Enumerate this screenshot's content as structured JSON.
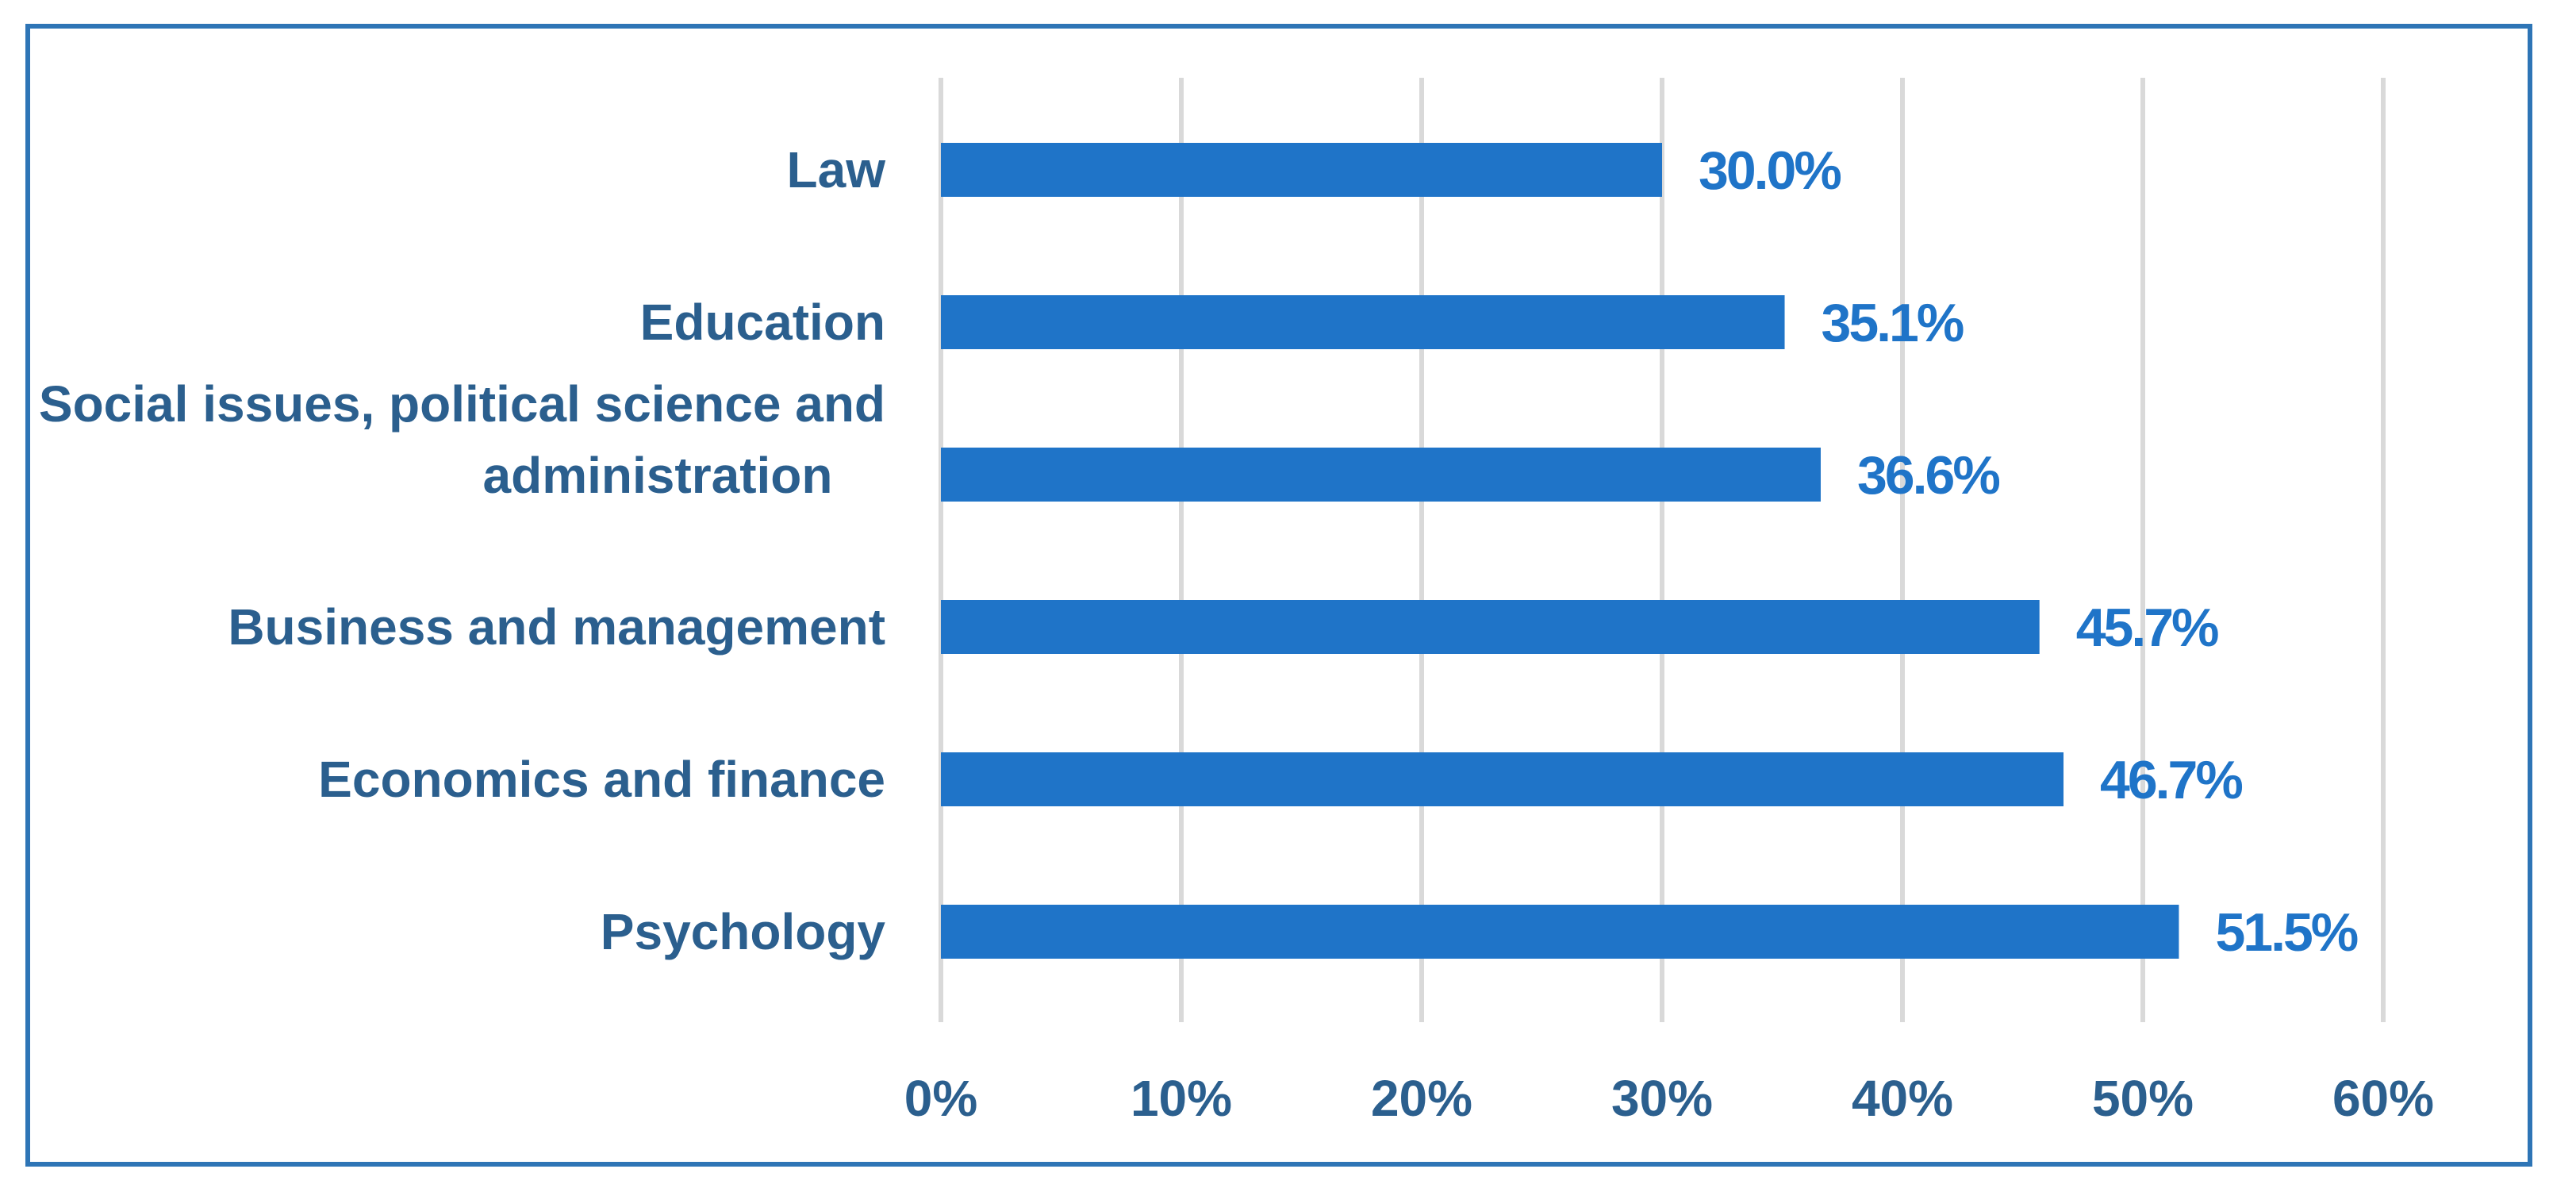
{
  "chart_data": {
    "type": "bar",
    "orientation": "horizontal",
    "categories": [
      "Law",
      "Education",
      "Social issues, political science and administration",
      "Business and management",
      "Economics and finance",
      "Psychology"
    ],
    "category_lines": [
      [
        "Law"
      ],
      [
        "Education"
      ],
      [
        "Social issues, political science and",
        "administration"
      ],
      [
        "Business and management"
      ],
      [
        "Economics and finance"
      ],
      [
        "Psychology"
      ]
    ],
    "values": [
      30.0,
      35.1,
      36.6,
      45.7,
      46.7,
      51.5
    ],
    "data_labels": [
      "30.0%",
      "35.1%",
      "36.6%",
      "45.7%",
      "46.7%",
      "51.5%"
    ],
    "x_ticks": [
      0,
      10,
      20,
      30,
      40,
      50,
      60
    ],
    "x_tick_labels": [
      "0%",
      "10%",
      "20%",
      "30%",
      "40%",
      "50%",
      "60%"
    ],
    "xlim": [
      0,
      60
    ],
    "title": "",
    "xlabel": "",
    "ylabel": "",
    "grid": true,
    "legend": "none",
    "colors": {
      "bar": "#1f74c8",
      "data_label": "#1f74c8",
      "axis_text": "#2b5f8e",
      "gridline": "#d9d9d9",
      "frame": "#2e75b6"
    }
  }
}
